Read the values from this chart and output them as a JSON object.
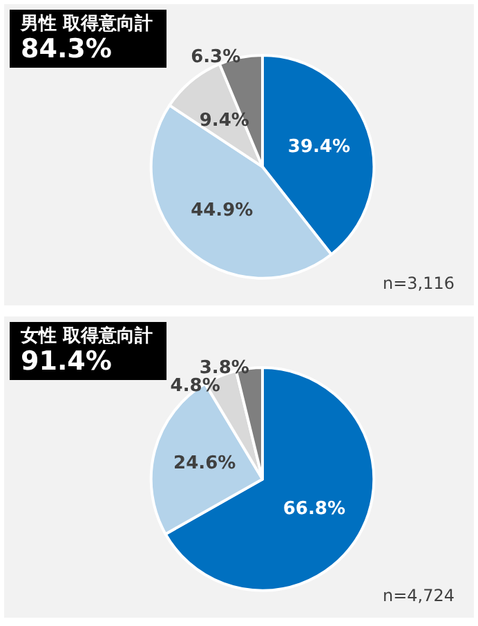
{
  "chart_data": [
    {
      "type": "pie",
      "title": "男性 取得意向計",
      "subtitle": "84.3%",
      "categories": [
        null,
        null,
        null,
        null
      ],
      "values": [
        39.4,
        44.9,
        9.4,
        6.3
      ],
      "colors": [
        "#0070c0",
        "#b4d3ea",
        "#d9d9d9",
        "#7f7f7f"
      ],
      "value_labels": [
        "39.4%",
        "44.9%",
        "9.4%",
        "6.3%"
      ],
      "annotations": [
        "n=3,116"
      ]
    },
    {
      "type": "pie",
      "title": "女性 取得意向計",
      "subtitle": "91.4%",
      "categories": [
        null,
        null,
        null,
        null
      ],
      "values": [
        66.8,
        24.6,
        4.8,
        3.8
      ],
      "colors": [
        "#0070c0",
        "#b4d3ea",
        "#d9d9d9",
        "#7f7f7f"
      ],
      "value_labels": [
        "66.8%",
        "24.6%",
        "4.8%",
        "3.8%"
      ],
      "annotations": [
        "n=4,724"
      ]
    }
  ]
}
